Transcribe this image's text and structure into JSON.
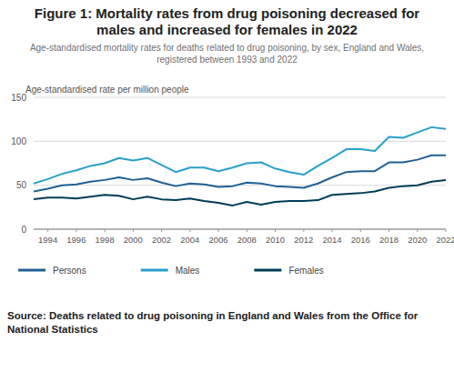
{
  "chart_data": {
    "type": "line",
    "title": "Figure 1: Mortality rates from drug poisoning decreased for males and increased for females in 2022",
    "subtitle": "Age-standardised mortality rates for deaths related to drug poisoning, by sex, England and Wales, registered between 1993 and 2022",
    "y_label": "Age-standardised rate per million people",
    "source": "Source: Deaths related to drug poisoning in England and Wales from the Office for National Statistics",
    "x": [
      1993,
      1994,
      1995,
      1996,
      1997,
      1998,
      1999,
      2000,
      2001,
      2002,
      2003,
      2004,
      2005,
      2006,
      2007,
      2008,
      2009,
      2010,
      2011,
      2012,
      2013,
      2014,
      2015,
      2016,
      2017,
      2018,
      2019,
      2020,
      2021,
      2022
    ],
    "series": [
      {
        "name": "Persons",
        "color": "#206095",
        "values": [
          43,
          46,
          50,
          51,
          54,
          56,
          59,
          56,
          58,
          53,
          49,
          52,
          51,
          48,
          49,
          53,
          52,
          49,
          48,
          47,
          52,
          59,
          65,
          66,
          66,
          76,
          76,
          79,
          84,
          84
        ]
      },
      {
        "name": "Males",
        "color": "#27a0cc",
        "values": [
          52,
          57,
          63,
          67,
          72,
          75,
          81,
          78,
          81,
          73,
          65,
          70,
          70,
          66,
          70,
          75,
          76,
          69,
          65,
          62,
          72,
          81,
          91,
          91,
          89,
          105,
          104,
          110,
          116,
          114
        ]
      },
      {
        "name": "Females",
        "color": "#003c57",
        "values": [
          34,
          36,
          36,
          35,
          37,
          39,
          38,
          34,
          37,
          34,
          33,
          35,
          32,
          30,
          27,
          31,
          28,
          31,
          32,
          32,
          33,
          39,
          40,
          41,
          43,
          47,
          49,
          50,
          54,
          56
        ]
      }
    ],
    "xlim": [
      1993,
      2022
    ],
    "xticks": [
      1994,
      1996,
      1998,
      2000,
      2002,
      2004,
      2006,
      2008,
      2010,
      2012,
      2014,
      2016,
      2018,
      2020,
      2022
    ],
    "ylim": [
      0,
      150
    ],
    "yticks": [
      0,
      50,
      100,
      150
    ],
    "grid": true,
    "legend": "bottom"
  }
}
